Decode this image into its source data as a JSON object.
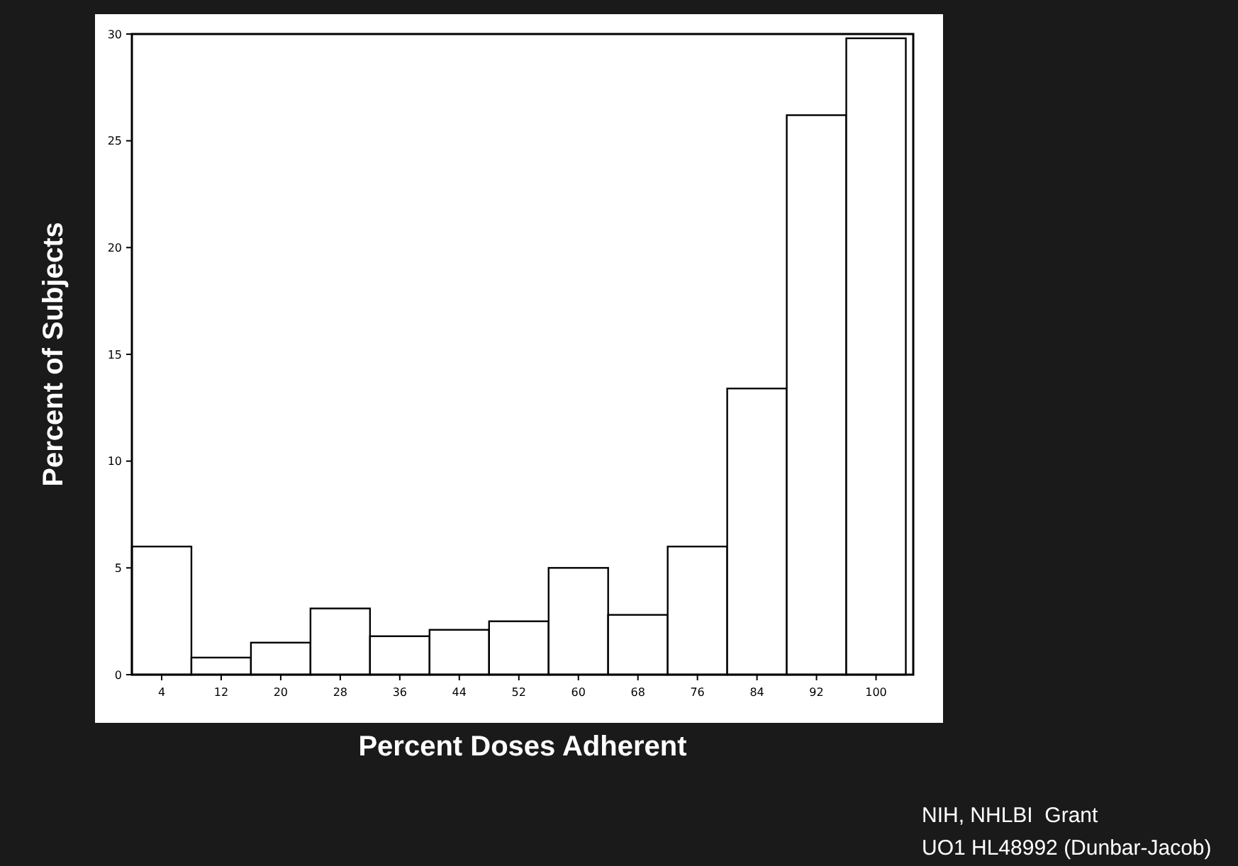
{
  "chart_data": {
    "type": "histogram",
    "xlabel": "Percent Doses Adherent",
    "ylabel": "Percent of Subjects",
    "bins": [
      0,
      8,
      16,
      24,
      32,
      40,
      48,
      56,
      64,
      72,
      80,
      88,
      96,
      104
    ],
    "values": [
      6.0,
      0.8,
      1.5,
      3.1,
      1.8,
      2.1,
      2.5,
      5.0,
      2.8,
      6.0,
      13.4,
      26.2,
      29.8
    ],
    "color": "#ffffff",
    "xlim": [
      0,
      105
    ],
    "xticks": [
      4,
      12,
      20,
      28,
      36,
      44,
      52,
      60,
      68,
      76,
      84,
      92,
      100
    ],
    "ylim": [
      0,
      30
    ],
    "yticks": [
      0,
      5,
      10,
      15,
      20,
      25,
      30
    ],
    "grid": false,
    "annotations": [
      "NIH, NHLBI  Grant",
      "UO1 HL48992 (Dunbar-Jacob)"
    ]
  }
}
